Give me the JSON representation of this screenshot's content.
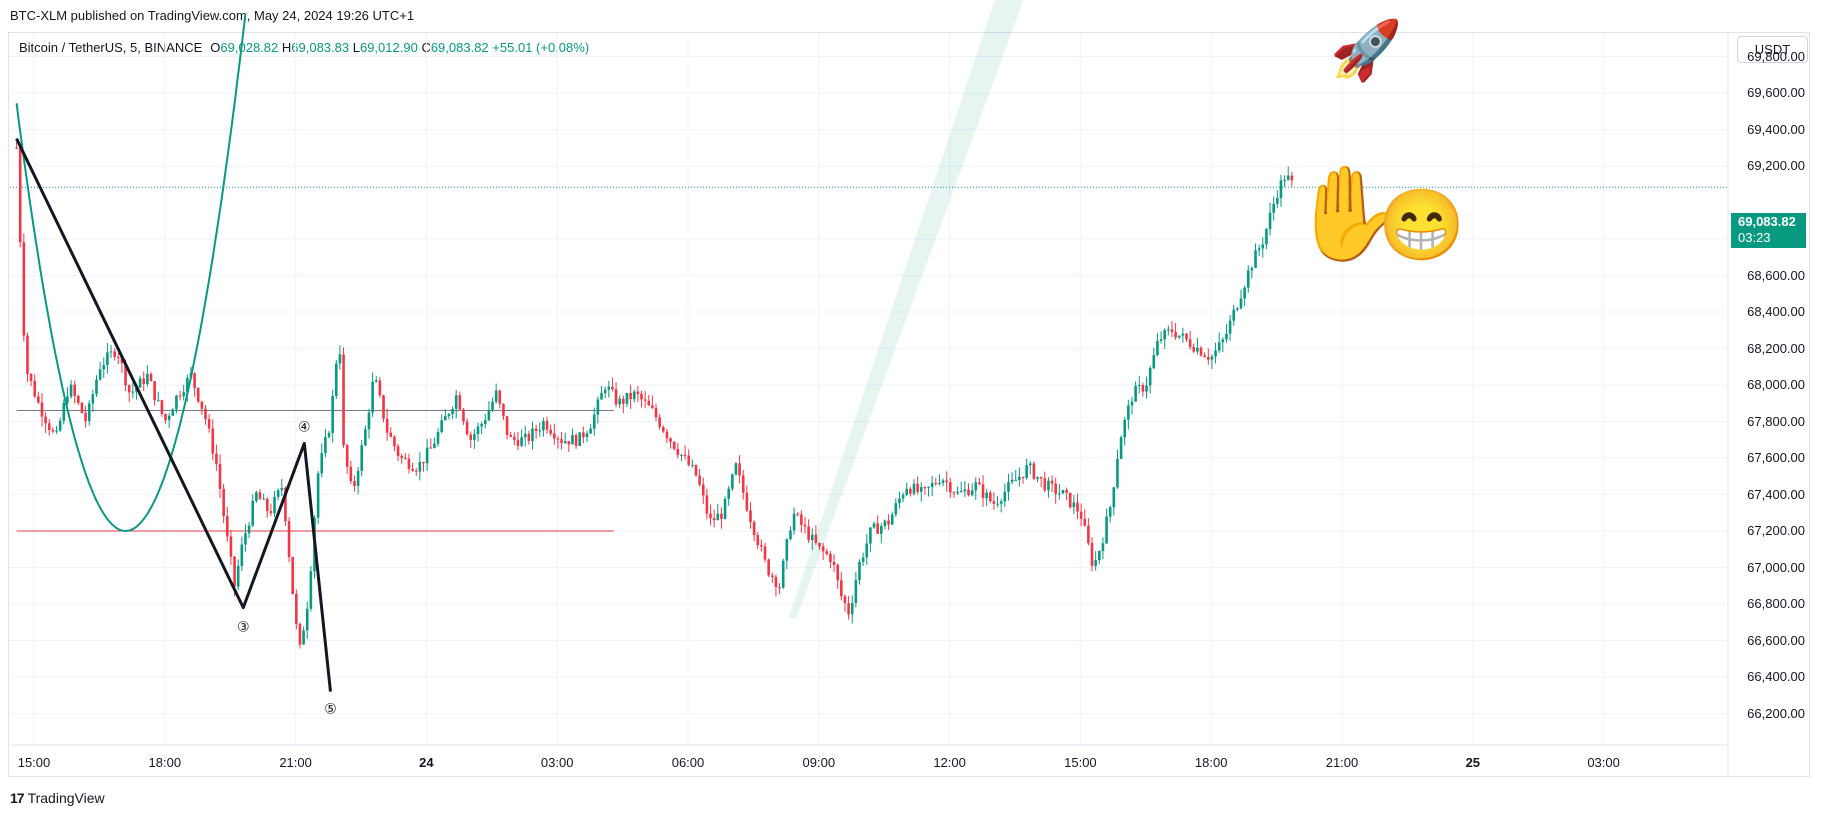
{
  "header": {
    "published": "BTC-XLM published on TradingView.com, May 24, 2024 19:26 UTC+1"
  },
  "legend": {
    "symbol": "Bitcoin / TetherUS, 5, BINANCE",
    "o_label": "O",
    "o": "69,028.82",
    "h_label": "H",
    "h": "69,083.83",
    "l_label": "L",
    "l": "69,012.90",
    "c_label": "C",
    "c": "69,083.82",
    "change": "+55.01 (+0.08%)"
  },
  "currency_button": "USDT",
  "price_tag": {
    "price": "69,083.82",
    "countdown": "03:23"
  },
  "footer": {
    "logo_mark": "17",
    "brand": "TradingView"
  },
  "colors": {
    "up": "#089981",
    "down": "#f23645",
    "accent": "#089981",
    "pattern": "#131722",
    "hline": "#f23645"
  },
  "annotations": {
    "wave3": "③",
    "wave4": "④",
    "wave5": "⑤",
    "rocket_icon": "🚀",
    "hand_icon": "✋",
    "grin_icon": "😁"
  },
  "chart_data": {
    "type": "candlestick",
    "title": "",
    "symbol": "BTCUSDT",
    "interval": "5",
    "exchange": "BINANCE",
    "ylim": [
      66100,
      70100
    ],
    "y_ticks": [
      "69,800.00",
      "69,600.00",
      "69,400.00",
      "69,200.00",
      "68,800.00",
      "68,600.00",
      "68,400.00",
      "68,200.00",
      "68,000.00",
      "67,800.00",
      "67,600.00",
      "67,400.00",
      "67,200.00",
      "67,000.00",
      "66,800.00",
      "66,600.00",
      "66,400.00",
      "66,200.00"
    ],
    "y_tick_values": [
      69800,
      69600,
      69400,
      69200,
      68800,
      68600,
      68400,
      68200,
      68000,
      67800,
      67600,
      67400,
      67200,
      67000,
      66800,
      66600,
      66400,
      66200
    ],
    "x_ticks": [
      {
        "label": "15:00",
        "t": 0,
        "bold": false
      },
      {
        "label": "18:00",
        "t": 3,
        "bold": false
      },
      {
        "label": "21:00",
        "t": 6,
        "bold": false
      },
      {
        "label": "24",
        "t": 9,
        "bold": true
      },
      {
        "label": "03:00",
        "t": 12,
        "bold": false
      },
      {
        "label": "06:00",
        "t": 15,
        "bold": false
      },
      {
        "label": "09:00",
        "t": 18,
        "bold": false
      },
      {
        "label": "12:00",
        "t": 21,
        "bold": false
      },
      {
        "label": "15:00",
        "t": 24,
        "bold": false
      },
      {
        "label": "18:00",
        "t": 27,
        "bold": false
      },
      {
        "label": "21:00",
        "t": 30,
        "bold": false
      },
      {
        "label": "25",
        "t": 33,
        "bold": true
      },
      {
        "label": "03:00",
        "t": 36,
        "bold": false
      }
    ],
    "price_path": [
      [
        -0.4,
        69300
      ],
      [
        -0.3,
        68700
      ],
      [
        -0.2,
        68100
      ],
      [
        0.1,
        67900
      ],
      [
        0.5,
        67700
      ],
      [
        0.8,
        68000
      ],
      [
        1.2,
        67800
      ],
      [
        1.5,
        68100
      ],
      [
        1.9,
        68200
      ],
      [
        2.2,
        67950
      ],
      [
        2.6,
        68050
      ],
      [
        3.0,
        67800
      ],
      [
        3.3,
        67950
      ],
      [
        3.6,
        68050
      ],
      [
        3.9,
        67850
      ],
      [
        4.2,
        67550
      ],
      [
        4.4,
        67200
      ],
      [
        4.6,
        66900
      ],
      [
        4.8,
        67150
      ],
      [
        5.1,
        67400
      ],
      [
        5.4,
        67300
      ],
      [
        5.7,
        67450
      ],
      [
        6.0,
        66700
      ],
      [
        6.1,
        66550
      ],
      [
        6.3,
        66850
      ],
      [
        6.5,
        67500
      ],
      [
        6.8,
        67800
      ],
      [
        7.0,
        68300
      ],
      [
        7.1,
        67650
      ],
      [
        7.3,
        67400
      ],
      [
        7.6,
        67750
      ],
      [
        7.8,
        68050
      ],
      [
        8.1,
        67750
      ],
      [
        8.4,
        67600
      ],
      [
        8.8,
        67550
      ],
      [
        9.1,
        67650
      ],
      [
        9.4,
        67800
      ],
      [
        9.7,
        67950
      ],
      [
        10.0,
        67700
      ],
      [
        10.3,
        67800
      ],
      [
        10.6,
        67950
      ],
      [
        10.9,
        67700
      ],
      [
        11.3,
        67700
      ],
      [
        11.7,
        67800
      ],
      [
        12.1,
        67700
      ],
      [
        12.5,
        67700
      ],
      [
        12.8,
        67800
      ],
      [
        13.1,
        68000
      ],
      [
        13.4,
        67900
      ],
      [
        13.8,
        67950
      ],
      [
        14.2,
        67850
      ],
      [
        14.6,
        67700
      ],
      [
        14.9,
        67600
      ],
      [
        15.2,
        67500
      ],
      [
        15.5,
        67250
      ],
      [
        15.8,
        67300
      ],
      [
        16.1,
        67550
      ],
      [
        16.4,
        67300
      ],
      [
        16.8,
        67000
      ],
      [
        17.1,
        66900
      ],
      [
        17.4,
        67300
      ],
      [
        17.7,
        67200
      ],
      [
        18.0,
        67100
      ],
      [
        18.3,
        67050
      ],
      [
        18.5,
        66850
      ],
      [
        18.7,
        66750
      ],
      [
        18.9,
        67000
      ],
      [
        19.2,
        67200
      ],
      [
        19.6,
        67250
      ],
      [
        20.0,
        67450
      ],
      [
        20.4,
        67400
      ],
      [
        20.8,
        67500
      ],
      [
        21.2,
        67400
      ],
      [
        21.6,
        67450
      ],
      [
        22.0,
        67350
      ],
      [
        22.4,
        67450
      ],
      [
        22.8,
        67550
      ],
      [
        23.2,
        67450
      ],
      [
        23.6,
        67400
      ],
      [
        24.0,
        67300
      ],
      [
        24.3,
        67000
      ],
      [
        24.5,
        67150
      ],
      [
        24.7,
        67350
      ],
      [
        24.9,
        67700
      ],
      [
        25.2,
        67950
      ],
      [
        25.5,
        68000
      ],
      [
        25.8,
        68250
      ],
      [
        26.1,
        68300
      ],
      [
        26.4,
        68250
      ],
      [
        26.7,
        68200
      ],
      [
        27.0,
        68150
      ],
      [
        27.3,
        68250
      ],
      [
        27.6,
        68450
      ],
      [
        27.9,
        68650
      ],
      [
        28.2,
        68800
      ],
      [
        28.5,
        69050
      ],
      [
        28.7,
        69150
      ],
      [
        28.9,
        69084
      ]
    ],
    "horizontal_lines": [
      {
        "price": 67860,
        "color": "#787b86",
        "t_start": -0.4,
        "t_end": 13.3
      },
      {
        "price": 67200,
        "color": "#f23645",
        "t_start": -0.4,
        "t_end": 13.3
      }
    ],
    "last_price": 69083.82,
    "wave_pattern": [
      [
        -0.4,
        69350
      ],
      [
        4.8,
        66780
      ],
      [
        6.2,
        67680
      ],
      [
        6.8,
        66320
      ]
    ],
    "parabola": {
      "vertex_t": 2.1,
      "vertex_price": 67200
    },
    "channel": [
      [
        17.3,
        66720
      ],
      [
        22.3,
        70300
      ]
    ]
  }
}
